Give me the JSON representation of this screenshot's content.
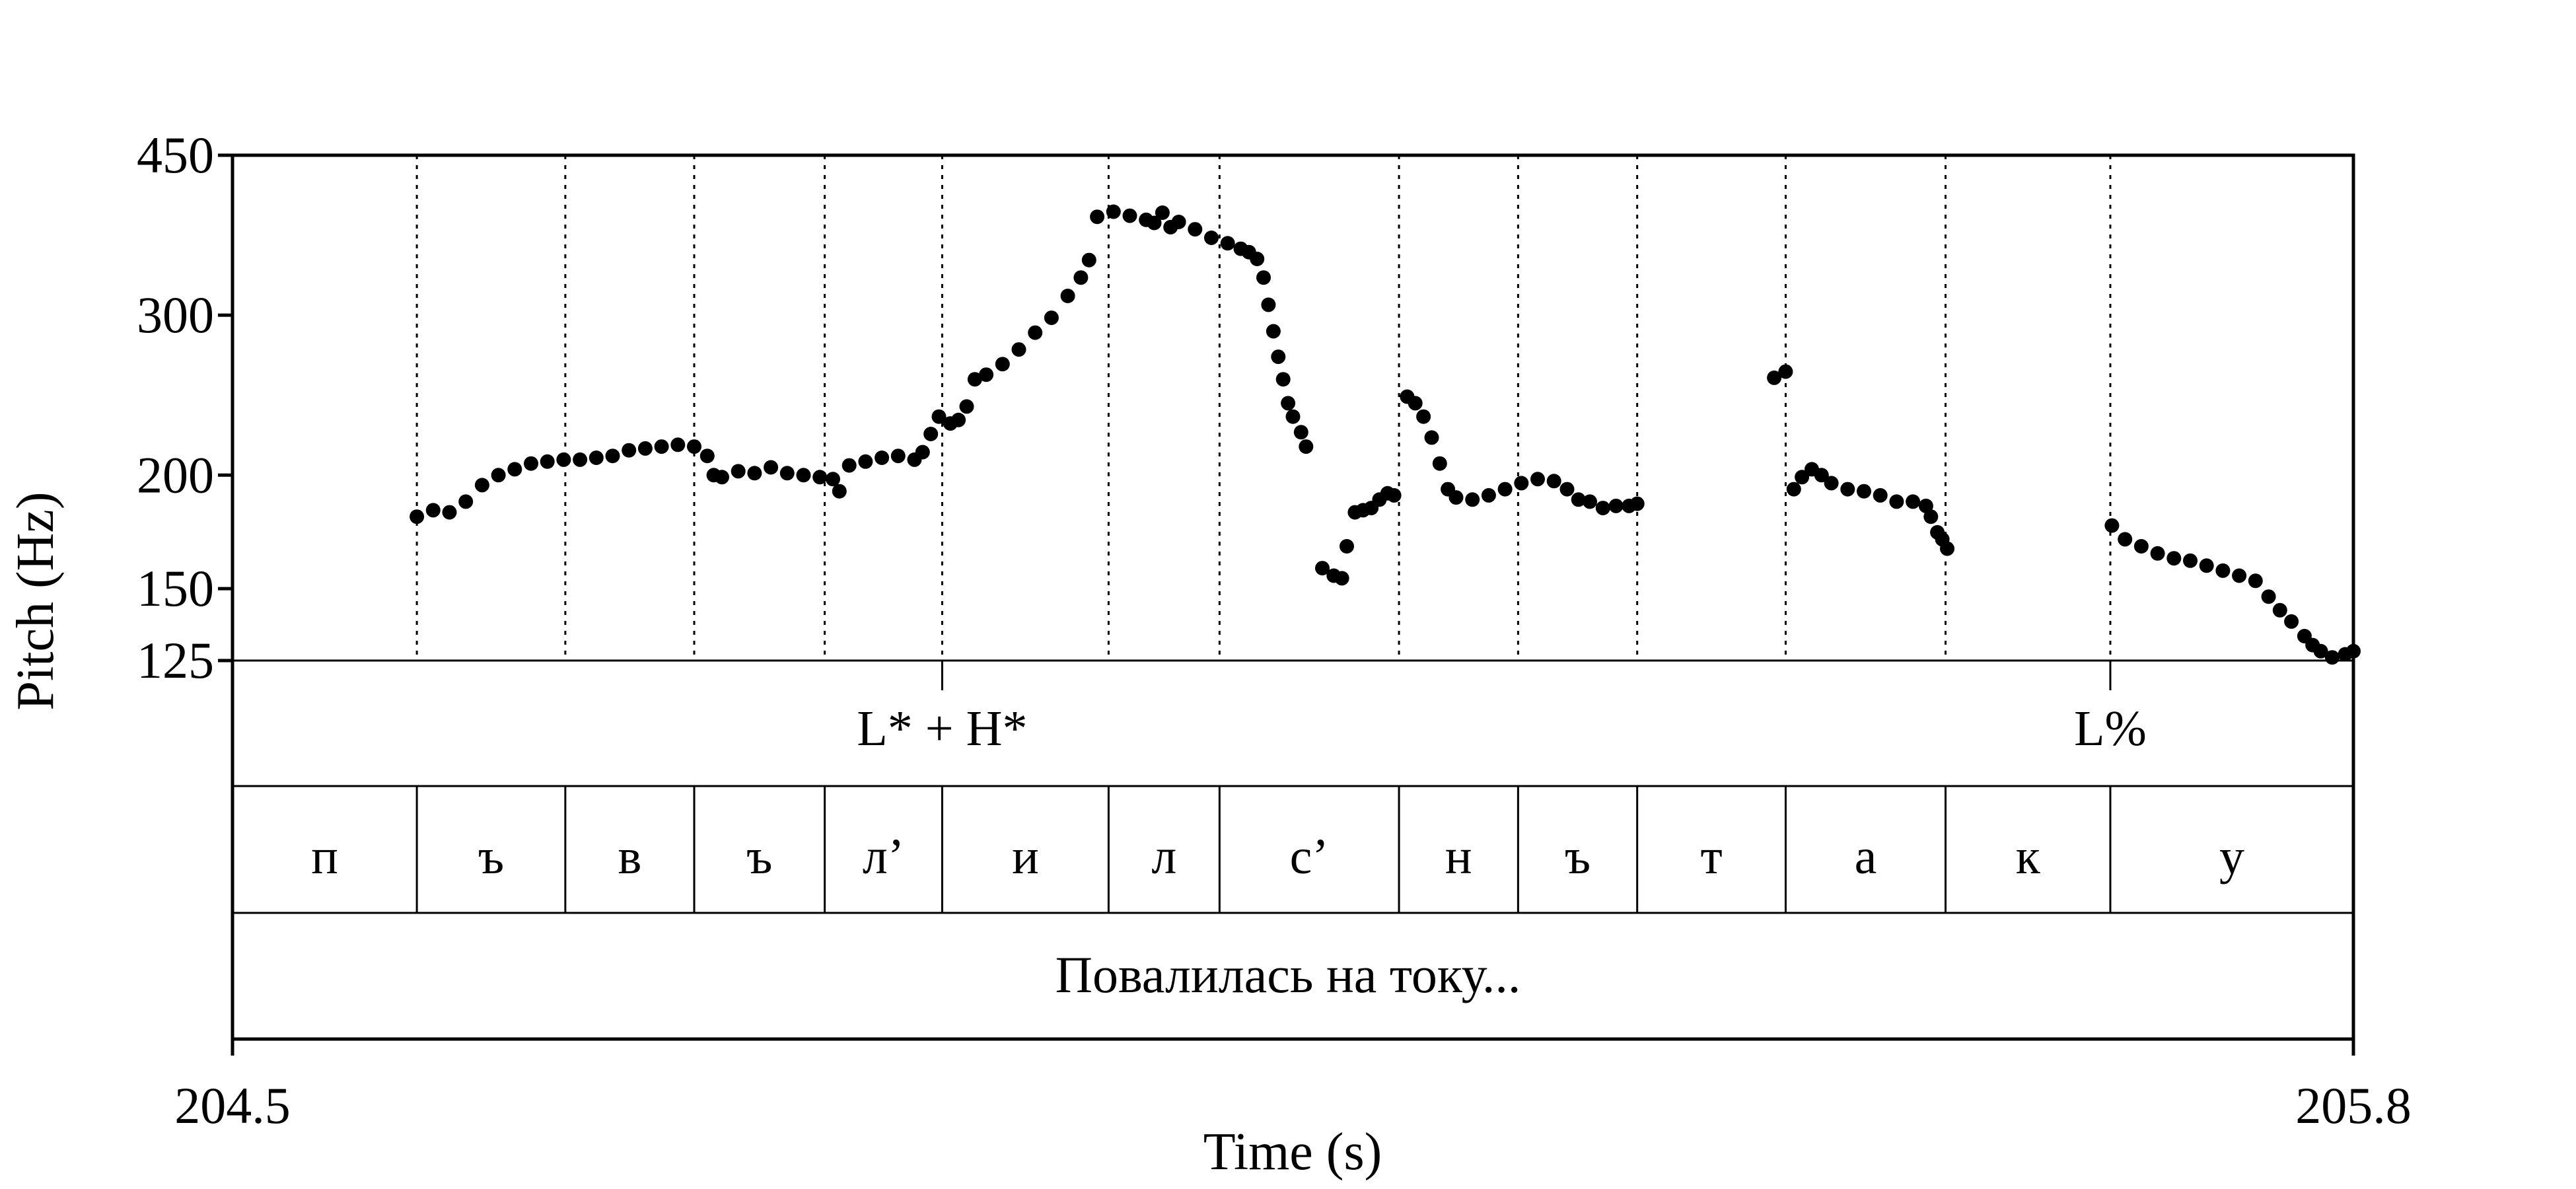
{
  "chart_data": {
    "type": "scatter",
    "title": "",
    "xlabel": "Time (s)",
    "ylabel": "Pitch (Hz)",
    "xlim": [
      204.5,
      205.8
    ],
    "ylim": [
      125,
      450
    ],
    "y_scale": "log",
    "x_ticks": [
      "204.5",
      "205.8"
    ],
    "y_ticks": [
      125,
      150,
      200,
      300,
      450
    ],
    "grid": false,
    "point_color": "#000000",
    "segment_boundaries": [
      204.613,
      204.704,
      204.783,
      204.863,
      204.935,
      205.037,
      205.105,
      205.215,
      205.288,
      205.361,
      205.452,
      205.55,
      205.651
    ],
    "tones": [
      {
        "time": 204.935,
        "label": "L* + H*"
      },
      {
        "time": 205.651,
        "label": "L%"
      }
    ],
    "segments": [
      {
        "start": 204.5,
        "end": 204.613,
        "label": "п"
      },
      {
        "start": 204.613,
        "end": 204.704,
        "label": "ъ"
      },
      {
        "start": 204.704,
        "end": 204.783,
        "label": "в"
      },
      {
        "start": 204.783,
        "end": 204.863,
        "label": "ъ"
      },
      {
        "start": 204.863,
        "end": 204.935,
        "label": "л’"
      },
      {
        "start": 204.935,
        "end": 205.037,
        "label": "и"
      },
      {
        "start": 205.037,
        "end": 205.105,
        "label": "л"
      },
      {
        "start": 205.105,
        "end": 205.215,
        "label": "с’"
      },
      {
        "start": 205.215,
        "end": 205.288,
        "label": "н"
      },
      {
        "start": 205.288,
        "end": 205.361,
        "label": "ъ"
      },
      {
        "start": 205.361,
        "end": 205.452,
        "label": "т"
      },
      {
        "start": 205.452,
        "end": 205.55,
        "label": "а"
      },
      {
        "start": 205.55,
        "end": 205.651,
        "label": "к"
      },
      {
        "start": 205.651,
        "end": 205.8,
        "label": "у"
      }
    ],
    "phrase": "Повалилась на току...",
    "series": [
      {
        "points": [
          [
            204.613,
            180
          ],
          [
            204.623,
            183
          ],
          [
            204.633,
            182
          ],
          [
            204.643,
            187
          ],
          [
            204.653,
            195
          ],
          [
            204.663,
            200
          ],
          [
            204.673,
            203
          ],
          [
            204.683,
            206
          ],
          [
            204.693,
            207
          ],
          [
            204.703,
            208
          ],
          [
            204.713,
            208
          ],
          [
            204.723,
            209
          ],
          [
            204.733,
            210
          ],
          [
            204.743,
            213
          ],
          [
            204.753,
            214
          ],
          [
            204.763,
            215
          ],
          [
            204.773,
            216
          ],
          [
            204.783,
            215
          ],
          [
            204.791,
            210
          ],
          [
            204.795,
            200
          ],
          [
            204.8,
            199
          ],
          [
            204.81,
            202
          ],
          [
            204.82,
            201
          ],
          [
            204.83,
            204
          ],
          [
            204.84,
            201
          ],
          [
            204.85,
            200
          ],
          [
            204.86,
            199
          ],
          [
            204.868,
            198
          ],
          [
            204.872,
            192
          ],
          [
            204.878,
            205
          ],
          [
            204.888,
            207
          ],
          [
            204.898,
            209
          ],
          [
            204.908,
            210
          ],
          [
            204.918,
            208
          ],
          [
            204.923,
            212
          ],
          [
            204.928,
            222
          ],
          [
            204.933,
            232
          ],
          [
            204.94,
            228
          ],
          [
            204.945,
            230
          ],
          [
            204.95,
            238
          ],
          [
            204.955,
            255
          ],
          [
            204.962,
            258
          ],
          [
            204.972,
            265
          ],
          [
            204.982,
            275
          ],
          [
            204.992,
            287
          ],
          [
            205.002,
            298
          ],
          [
            205.012,
            315
          ],
          [
            205.02,
            330
          ],
          [
            205.025,
            345
          ],
          [
            205.03,
            385
          ],
          [
            205.04,
            390
          ],
          [
            205.05,
            386
          ],
          [
            205.06,
            382
          ],
          [
            205.065,
            379
          ],
          [
            205.07,
            389
          ],
          [
            205.075,
            375
          ],
          [
            205.08,
            380
          ],
          [
            205.09,
            373
          ],
          [
            205.1,
            365
          ],
          [
            205.11,
            360
          ],
          [
            205.118,
            355
          ],
          [
            205.123,
            352
          ],
          [
            205.128,
            346
          ],
          [
            205.132,
            330
          ],
          [
            205.135,
            308
          ],
          [
            205.138,
            288
          ],
          [
            205.141,
            270
          ],
          [
            205.144,
            255
          ],
          [
            205.147,
            240
          ],
          [
            205.15,
            232
          ],
          [
            205.155,
            223
          ],
          [
            205.158,
            215
          ],
          [
            205.168,
            158
          ],
          [
            205.175,
            155
          ],
          [
            205.18,
            154
          ],
          [
            205.183,
            167
          ],
          [
            205.188,
            182
          ],
          [
            205.193,
            183
          ],
          [
            205.198,
            184
          ],
          [
            205.203,
            188
          ],
          [
            205.208,
            191
          ],
          [
            205.212,
            190
          ],
          [
            205.22,
            244
          ],
          [
            205.225,
            240
          ],
          [
            205.23,
            232
          ],
          [
            205.235,
            220
          ],
          [
            205.24,
            206
          ],
          [
            205.245,
            193
          ],
          [
            205.25,
            189
          ],
          [
            205.26,
            188
          ],
          [
            205.27,
            190
          ],
          [
            205.28,
            193
          ],
          [
            205.29,
            196
          ],
          [
            205.3,
            198
          ],
          [
            205.31,
            197
          ],
          [
            205.318,
            193
          ],
          [
            205.325,
            188
          ],
          [
            205.332,
            187
          ],
          [
            205.34,
            184
          ],
          [
            205.348,
            185
          ],
          [
            205.356,
            185
          ],
          [
            205.361,
            186
          ],
          [
            205.445,
            256
          ],
          [
            205.452,
            260
          ],
          [
            205.457,
            193
          ],
          [
            205.462,
            199
          ],
          [
            205.468,
            203
          ],
          [
            205.474,
            200
          ],
          [
            205.48,
            196
          ],
          [
            205.49,
            193
          ],
          [
            205.5,
            192
          ],
          [
            205.51,
            190
          ],
          [
            205.52,
            187
          ],
          [
            205.53,
            187
          ],
          [
            205.538,
            185
          ],
          [
            205.541,
            180
          ],
          [
            205.545,
            173
          ],
          [
            205.548,
            170
          ],
          [
            205.551,
            166
          ],
          [
            205.652,
            176
          ],
          [
            205.66,
            170
          ],
          [
            205.67,
            167
          ],
          [
            205.68,
            164
          ],
          [
            205.69,
            162
          ],
          [
            205.7,
            161
          ],
          [
            205.71,
            159
          ],
          [
            205.72,
            157
          ],
          [
            205.73,
            155
          ],
          [
            205.74,
            153
          ],
          [
            205.748,
            147
          ],
          [
            205.755,
            142
          ],
          [
            205.762,
            138
          ],
          [
            205.77,
            133
          ],
          [
            205.775,
            130
          ],
          [
            205.78,
            128
          ],
          [
            205.787,
            126
          ],
          [
            205.795,
            127
          ],
          [
            205.8,
            128
          ]
        ]
      }
    ]
  }
}
